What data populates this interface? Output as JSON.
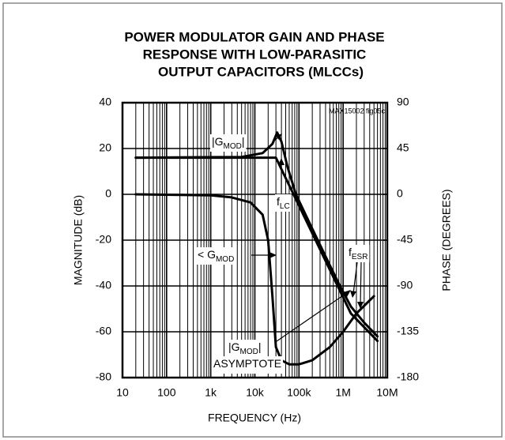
{
  "chart_data": {
    "type": "line",
    "title": [
      "POWER MODULATOR GAIN AND PHASE",
      "RESPONSE WITH LOW-PARASITIC",
      "OUTPUT CAPACITORS (MLCCs)"
    ],
    "figure_id": "MAX15002 fig05c",
    "xlabel": "FREQUENCY (Hz)",
    "ylabel": "MAGNITUDE (dB)",
    "y2label": "PHASE (DEGREES)",
    "xscale": "log",
    "grid": true,
    "minor_grid": true,
    "xlim": [
      10,
      10000000
    ],
    "xticks": [
      10,
      100,
      {
        "value": 1000,
        "label": "1k"
      },
      {
        "value": 10000,
        "label": "10k"
      },
      {
        "value": 100000,
        "label": "100k"
      },
      {
        "value": 1000000,
        "label": "1M"
      },
      {
        "value": 10000000,
        "label": "10M"
      }
    ],
    "ylim": [
      -80,
      40
    ],
    "yticks": [
      40,
      20,
      0,
      -20,
      -40,
      -60,
      -80
    ],
    "y2lim": [
      -180,
      90
    ],
    "y2ticks": [
      90,
      45,
      0,
      -45,
      -90,
      -135,
      -180
    ],
    "series": [
      {
        "color": "#000000",
        "x": [
          20,
          5000,
          15000,
          25000,
          32000,
          40000,
          55000,
          85000,
          200000,
          500000,
          850000,
          1500000,
          3000000,
          6000000
        ],
        "values": [
          16,
          16.3,
          18,
          22,
          27,
          23,
          12,
          0,
          -15,
          -31,
          -40,
          -49,
          -56,
          -62
        ]
      },
      {
        "color": "#000000",
        "x": [
          20,
          30000,
          1500000,
          6000000
        ],
        "values": [
          16,
          16,
          -52,
          -64
        ]
      },
      {
        "color": "#000000",
        "axis": "y2",
        "x": [
          20,
          1000,
          3000,
          8000,
          15000,
          20000,
          25000,
          30000,
          40000,
          60000,
          100000,
          200000,
          500000,
          1000000,
          2000000,
          5000000
        ],
        "values": [
          0,
          -1,
          -3,
          -8,
          -20,
          -45,
          -100,
          -150,
          -163,
          -167,
          -167,
          -163,
          -150,
          -135,
          -117,
          -100
        ]
      }
    ],
    "annotations": [
      {
        "text": "|G",
        "sub": "MOD",
        "tail": "|"
      },
      {
        "text": "f",
        "sub": "LC"
      },
      {
        "text": "< G",
        "sub": "MOD"
      },
      {
        "text": "f",
        "sub": "ESR"
      },
      {
        "text": "|G",
        "sub": "MOD",
        "tail": "|"
      },
      {
        "text": "ASYMPTOTE"
      }
    ]
  }
}
